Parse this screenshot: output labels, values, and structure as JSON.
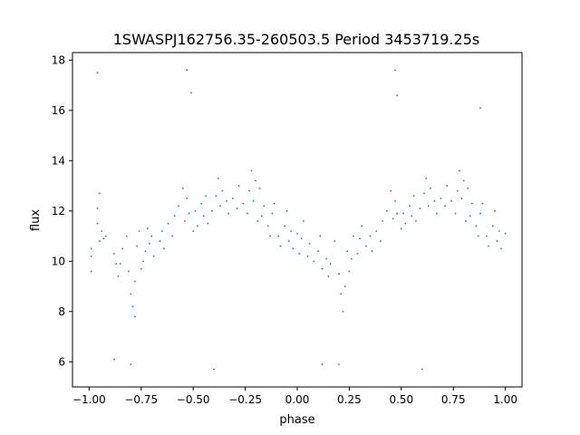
{
  "chart_data": {
    "type": "scatter",
    "title": "1SWASPJ162756.35-260503.5 Period 3453719.25s",
    "xlabel": "phase",
    "ylabel": "flux",
    "xlim": [
      -1.08,
      1.08
    ],
    "ylim": [
      5.0,
      18.3
    ],
    "x_ticks": [
      -1.0,
      -0.75,
      -0.5,
      -0.25,
      0.0,
      0.25,
      0.5,
      0.75,
      1.0
    ],
    "x_tick_labels": [
      "−1.00",
      "−0.75",
      "−0.50",
      "−0.25",
      "0.00",
      "0.25",
      "0.50",
      "0.75",
      "1.00"
    ],
    "y_ticks": [
      6,
      8,
      10,
      12,
      14,
      16,
      18
    ],
    "y_tick_labels": [
      "6",
      "8",
      "10",
      "12",
      "14",
      "16",
      "18"
    ],
    "grid": false,
    "legend": "none",
    "marker_color": "#1f77b4",
    "series": [
      {
        "description_free": true,
        "points": [
          [
            -0.99,
            10.2
          ],
          [
            -0.99,
            9.6
          ],
          [
            -0.99,
            10.5
          ],
          [
            -0.96,
            11.5
          ],
          [
            -0.96,
            12.1
          ],
          [
            -0.95,
            10.8
          ],
          [
            -0.95,
            12.7
          ],
          [
            -0.94,
            11.2
          ],
          [
            -0.93,
            10.9
          ],
          [
            -0.92,
            11.0
          ],
          [
            -0.88,
            10.3
          ],
          [
            -0.87,
            9.9
          ],
          [
            -0.86,
            9.4
          ],
          [
            -0.85,
            9.9
          ],
          [
            -0.84,
            10.5
          ],
          [
            -0.82,
            11.0
          ],
          [
            -0.81,
            9.6
          ],
          [
            -0.8,
            8.7
          ],
          [
            -0.79,
            8.2
          ],
          [
            -0.78,
            7.8
          ],
          [
            -0.78,
            9.2
          ],
          [
            -0.77,
            10.6
          ],
          [
            -0.76,
            11.2
          ],
          [
            -0.75,
            9.7
          ],
          [
            -0.74,
            10.0
          ],
          [
            -0.73,
            10.4
          ],
          [
            -0.72,
            11.3
          ],
          [
            -0.71,
            10.7
          ],
          [
            -0.7,
            11.0
          ],
          [
            -0.69,
            10.2
          ],
          [
            -0.66,
            10.8
          ],
          [
            -0.65,
            11.2
          ],
          [
            -0.64,
            10.5
          ],
          [
            -0.62,
            11.5
          ],
          [
            -0.6,
            11.0
          ],
          [
            -0.59,
            11.8
          ],
          [
            -0.57,
            12.2
          ],
          [
            -0.55,
            12.9
          ],
          [
            -0.54,
            11.6
          ],
          [
            -0.53,
            12.5
          ],
          [
            -0.52,
            11.9
          ],
          [
            -0.5,
            11.2
          ],
          [
            -0.49,
            12.0
          ],
          [
            -0.48,
            11.4
          ],
          [
            -0.46,
            12.3
          ],
          [
            -0.45,
            11.8
          ],
          [
            -0.44,
            12.6
          ],
          [
            -0.43,
            11.5
          ],
          [
            -0.41,
            12.0
          ],
          [
            -0.39,
            12.6
          ],
          [
            -0.38,
            13.3
          ],
          [
            -0.37,
            12.2
          ],
          [
            -0.36,
            12.8
          ],
          [
            -0.34,
            12.4
          ],
          [
            -0.33,
            11.9
          ],
          [
            -0.31,
            12.5
          ],
          [
            -0.29,
            12.1
          ],
          [
            -0.28,
            13.0
          ],
          [
            -0.26,
            12.3
          ],
          [
            -0.24,
            11.9
          ],
          [
            -0.23,
            12.8
          ],
          [
            -0.22,
            13.6
          ],
          [
            -0.21,
            12.4
          ],
          [
            -0.2,
            13.2
          ],
          [
            -0.19,
            11.6
          ],
          [
            -0.18,
            12.9
          ],
          [
            -0.17,
            11.8
          ],
          [
            -0.16,
            12.2
          ],
          [
            -0.14,
            11.4
          ],
          [
            -0.13,
            11.0
          ],
          [
            -0.12,
            11.9
          ],
          [
            -0.11,
            12.3
          ],
          [
            -0.09,
            11.0
          ],
          [
            -0.08,
            10.6
          ],
          [
            -0.06,
            11.4
          ],
          [
            -0.05,
            12.0
          ],
          [
            -0.04,
            10.8
          ],
          [
            -0.03,
            11.2
          ],
          [
            -0.02,
            10.5
          ],
          [
            0.0,
            11.1
          ],
          [
            0.01,
            10.3
          ],
          [
            0.02,
            10.9
          ],
          [
            0.03,
            11.6
          ],
          [
            0.05,
            10.2
          ],
          [
            0.06,
            10.7
          ],
          [
            0.08,
            10.0
          ],
          [
            0.1,
            10.4
          ],
          [
            0.11,
            11.0
          ],
          [
            0.12,
            9.7
          ],
          [
            0.14,
            10.1
          ],
          [
            0.15,
            9.4
          ],
          [
            0.16,
            9.9
          ],
          [
            0.18,
            10.8
          ],
          [
            0.2,
            9.5
          ],
          [
            0.21,
            8.7
          ],
          [
            0.22,
            8.0
          ],
          [
            0.23,
            9.0
          ],
          [
            0.24,
            10.4
          ],
          [
            0.25,
            9.6
          ],
          [
            0.26,
            10.1
          ],
          [
            0.27,
            11.0
          ],
          [
            0.29,
            10.3
          ],
          [
            0.3,
            10.9
          ],
          [
            0.31,
            11.4
          ],
          [
            0.33,
            10.6
          ],
          [
            0.35,
            11.0
          ],
          [
            0.36,
            10.4
          ],
          [
            0.38,
            11.2
          ],
          [
            0.4,
            10.8
          ],
          [
            0.41,
            11.6
          ],
          [
            0.43,
            12.0
          ],
          [
            0.45,
            12.8
          ],
          [
            0.46,
            11.7
          ],
          [
            0.47,
            12.4
          ],
          [
            0.48,
            11.9
          ],
          [
            0.5,
            11.3
          ],
          [
            0.51,
            11.9
          ],
          [
            0.52,
            11.5
          ],
          [
            0.54,
            12.2
          ],
          [
            0.55,
            11.8
          ],
          [
            0.56,
            12.6
          ],
          [
            0.57,
            11.6
          ],
          [
            0.59,
            12.1
          ],
          [
            0.61,
            12.7
          ],
          [
            0.62,
            13.3
          ],
          [
            0.63,
            12.2
          ],
          [
            0.64,
            12.9
          ],
          [
            0.66,
            12.4
          ],
          [
            0.67,
            11.9
          ],
          [
            0.69,
            12.5
          ],
          [
            0.71,
            12.2
          ],
          [
            0.72,
            13.0
          ],
          [
            0.74,
            12.4
          ],
          [
            0.76,
            11.9
          ],
          [
            0.77,
            12.8
          ],
          [
            0.78,
            13.6
          ],
          [
            0.79,
            12.5
          ],
          [
            0.8,
            13.2
          ],
          [
            0.81,
            11.6
          ],
          [
            0.82,
            12.9
          ],
          [
            0.83,
            11.8
          ],
          [
            0.84,
            12.3
          ],
          [
            0.86,
            11.4
          ],
          [
            0.87,
            11.0
          ],
          [
            0.88,
            11.9
          ],
          [
            0.89,
            12.3
          ],
          [
            0.91,
            11.0
          ],
          [
            0.92,
            10.6
          ],
          [
            0.94,
            11.4
          ],
          [
            0.95,
            12.0
          ],
          [
            0.96,
            10.8
          ],
          [
            0.97,
            11.2
          ],
          [
            0.98,
            10.5
          ],
          [
            1.0,
            11.1
          ],
          [
            -0.96,
            17.5
          ],
          [
            -0.53,
            17.6
          ],
          [
            -0.51,
            16.7
          ],
          [
            -0.4,
            5.7
          ],
          [
            0.12,
            5.9
          ],
          [
            0.47,
            17.6
          ],
          [
            0.48,
            16.6
          ],
          [
            0.6,
            5.7
          ],
          [
            -0.8,
            5.9
          ],
          [
            0.2,
            5.9
          ],
          [
            -0.88,
            6.1
          ],
          [
            0.88,
            16.1
          ]
        ]
      }
    ]
  }
}
